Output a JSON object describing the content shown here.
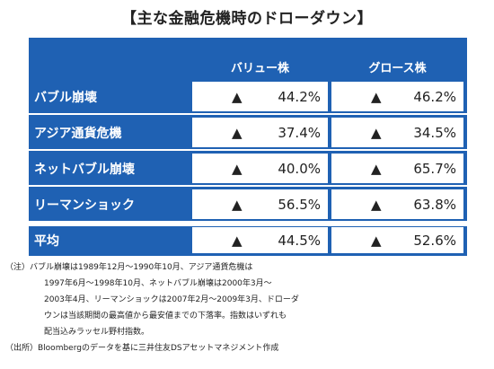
{
  "title": "【主な金融危機時のドローダウン】",
  "table": {
    "headers": [
      "バリュー株",
      "グロース株"
    ],
    "rows": [
      {
        "label": "バブル崩壊",
        "marker": "▲",
        "value": "44.2%",
        "growth_marker": "▲",
        "growth": "46.2%"
      },
      {
        "label": "アジア通貨危機",
        "marker": "▲",
        "value": "37.4%",
        "growth_marker": "▲",
        "growth": "34.5%"
      },
      {
        "label": "ネットバブル崩壊",
        "marker": "▲",
        "value": "40.0%",
        "growth_marker": "▲",
        "growth": "65.7%"
      },
      {
        "label": "リーマンショック",
        "marker": "▲",
        "value": "56.5%",
        "growth_marker": "▲",
        "growth": "63.8%"
      },
      {
        "label": "平均",
        "marker": "▲",
        "value": "44.5%",
        "growth_marker": "▲",
        "growth": "52.6%"
      }
    ]
  },
  "notes": [
    "（注）バブル崩壊は1989年12月～1990年10月、アジア通貨危機は",
    "1997年6月～1998年10月、ネットバブル崩壊は2000年3月～",
    "2003年4月、リーマンショックは2007年2月～2009年3月、ドローダ",
    "ウンは当該期間の最高値から最安値までの下落率。指数はいずれも",
    "配当込みラッセル野村指数。",
    "（出所）Bloombergのデータを基に三井住友DSアセットマネジメント作成"
  ],
  "colors": {
    "table_blue": "#1f61b3",
    "text": "#222222"
  }
}
